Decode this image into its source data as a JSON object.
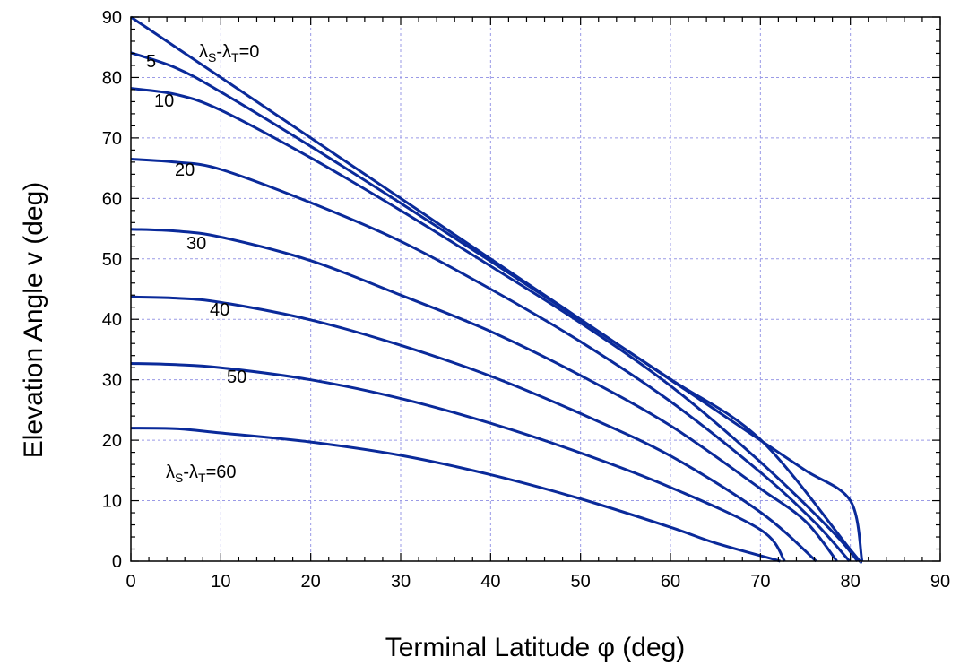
{
  "chart_data": {
    "type": "line",
    "title": "",
    "xlabel": "Terminal Latitude φ (deg)",
    "ylabel": "Elevation Angle v (deg)",
    "xlim": [
      0,
      90
    ],
    "ylim": [
      0,
      90
    ],
    "xticks": [
      0,
      10,
      20,
      30,
      40,
      50,
      60,
      70,
      80,
      90
    ],
    "yticks": [
      0,
      10,
      20,
      30,
      40,
      50,
      60,
      70,
      80,
      90
    ],
    "grid": true,
    "line_color": "#0a2a9a",
    "grid_color": "#9a9ae6",
    "series": [
      {
        "label": "λS-λT=0",
        "points": [
          [
            0,
            90
          ],
          [
            10,
            80
          ],
          [
            20,
            70
          ],
          [
            30,
            60
          ],
          [
            40,
            50
          ],
          [
            50,
            40
          ],
          [
            60,
            30
          ],
          [
            70,
            20
          ],
          [
            75,
            15
          ],
          [
            80,
            10
          ],
          [
            81.3,
            0
          ]
        ]
      },
      {
        "label": "5",
        "points": [
          [
            0,
            84.1
          ],
          [
            5,
            81.6
          ],
          [
            10,
            77.6
          ],
          [
            20,
            68.6
          ],
          [
            30,
            59.2
          ],
          [
            40,
            49.6
          ],
          [
            50,
            39.9
          ],
          [
            60,
            30.1
          ],
          [
            70,
            20.1
          ],
          [
            80,
            1.9
          ],
          [
            81.1,
            0
          ]
        ]
      },
      {
        "label": "10",
        "points": [
          [
            0,
            78.2
          ],
          [
            5,
            77.2
          ],
          [
            10,
            74.6
          ],
          [
            20,
            66.7
          ],
          [
            30,
            58.0
          ],
          [
            40,
            48.8
          ],
          [
            50,
            39.4
          ],
          [
            60,
            29.0
          ],
          [
            70,
            16.4
          ],
          [
            78,
            4.9
          ],
          [
            80.8,
            0
          ]
        ]
      },
      {
        "label": "20",
        "points": [
          [
            0,
            66.5
          ],
          [
            5,
            66.0
          ],
          [
            10,
            64.8
          ],
          [
            20,
            59.3
          ],
          [
            30,
            52.9
          ],
          [
            40,
            45.0
          ],
          [
            50,
            36.3
          ],
          [
            60,
            26.4
          ],
          [
            70,
            14.7
          ],
          [
            76,
            6.5
          ],
          [
            79.9,
            0
          ]
        ]
      },
      {
        "label": "30",
        "points": [
          [
            0,
            54.9
          ],
          [
            5,
            54.6
          ],
          [
            10,
            53.6
          ],
          [
            20,
            49.7
          ],
          [
            30,
            44.0
          ],
          [
            40,
            38.0
          ],
          [
            50,
            30.7
          ],
          [
            60,
            22.4
          ],
          [
            70,
            12.0
          ],
          [
            75,
            6.6
          ],
          [
            78.5,
            0
          ]
        ]
      },
      {
        "label": "40",
        "points": [
          [
            0,
            43.7
          ],
          [
            5,
            43.5
          ],
          [
            10,
            42.8
          ],
          [
            20,
            39.9
          ],
          [
            30,
            35.7
          ],
          [
            40,
            30.6
          ],
          [
            50,
            24.4
          ],
          [
            60,
            17.4
          ],
          [
            70,
            8.1
          ],
          [
            76.2,
            0
          ]
        ]
      },
      {
        "label": "50",
        "points": [
          [
            0,
            32.7
          ],
          [
            5,
            32.5
          ],
          [
            10,
            32.0
          ],
          [
            20,
            30.0
          ],
          [
            30,
            26.9
          ],
          [
            40,
            22.8
          ],
          [
            50,
            17.9
          ],
          [
            60,
            12.2
          ],
          [
            70,
            5.2
          ],
          [
            72.7,
            0
          ]
        ]
      },
      {
        "label": "λS-λT=60",
        "points": [
          [
            0,
            22.0
          ],
          [
            5,
            21.9
          ],
          [
            10,
            21.2
          ],
          [
            20,
            19.7
          ],
          [
            30,
            17.5
          ],
          [
            40,
            14.3
          ],
          [
            50,
            10.3
          ],
          [
            60,
            5.6
          ],
          [
            65,
            3.0
          ],
          [
            72.2,
            0
          ]
        ]
      }
    ],
    "annotations": [
      {
        "id": "label-0",
        "main": "λ",
        "parts": [
          [
            "λ",
            ""
          ],
          [
            "S",
            "sub"
          ],
          [
            "-λ",
            ""
          ],
          [
            "T",
            "sub"
          ],
          [
            "=0",
            ""
          ]
        ],
        "text": "λS-λT=0"
      },
      {
        "id": "label-5",
        "text": "5"
      },
      {
        "id": "label-10",
        "text": "10"
      },
      {
        "id": "label-20",
        "text": "20"
      },
      {
        "id": "label-30",
        "text": "30"
      },
      {
        "id": "label-40",
        "text": "40"
      },
      {
        "id": "label-50",
        "text": "50"
      },
      {
        "id": "label-60",
        "text": "λS-λT=60"
      }
    ]
  }
}
